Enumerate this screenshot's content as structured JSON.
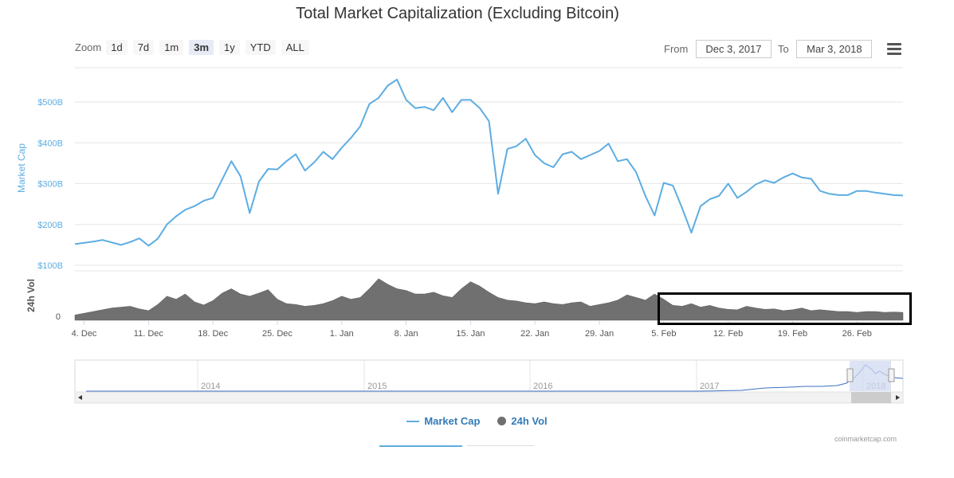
{
  "title": "Total Market Capitalization (Excluding Bitcoin)",
  "zoom": {
    "label": "Zoom",
    "buttons": [
      "1d",
      "7d",
      "1m",
      "3m",
      "1y",
      "YTD",
      "ALL"
    ],
    "active": "3m"
  },
  "range": {
    "from_label": "From",
    "from_value": "Dec 3, 2017",
    "to_label": "To",
    "to_value": "Mar 3, 2018"
  },
  "menu_icon": "hamburger-menu-icon",
  "colors": {
    "market_cap": "#5dade2",
    "volume": "#707070",
    "grid": "#e6e6e6",
    "navigator_fill": "#cfd9f0"
  },
  "chart_data": {
    "type": "line",
    "ylabel": "Market Cap",
    "ylabel2": "24h Vol",
    "y_ticks": [
      "$100B",
      "$200B",
      "$300B",
      "$400B",
      "$500B"
    ],
    "y_tick_values": [
      100,
      200,
      300,
      400,
      500
    ],
    "ylim": [
      100,
      560
    ],
    "vol_tick": "0",
    "x_ticks": [
      "4. Dec",
      "11. Dec",
      "18. Dec",
      "25. Dec",
      "1. Jan",
      "8. Jan",
      "15. Jan",
      "22. Jan",
      "29. Jan",
      "5. Feb",
      "12. Feb",
      "19. Feb",
      "26. Feb"
    ],
    "xlim_days": [
      0,
      90
    ],
    "x_tick_days": [
      1,
      8,
      15,
      22,
      29,
      36,
      43,
      50,
      57,
      64,
      71,
      78,
      85
    ],
    "series": [
      {
        "name": "Market Cap",
        "unit": "B USD",
        "x_days": [
          0,
          2,
          3,
          5,
          6,
          7,
          8,
          9,
          10,
          11,
          12,
          13,
          14,
          15,
          16,
          17,
          18,
          19,
          20,
          21,
          22,
          23,
          24,
          25,
          26,
          27,
          28,
          29,
          30,
          31,
          32,
          33,
          34,
          35,
          36,
          37,
          38,
          39,
          40,
          41,
          42,
          43,
          44,
          45,
          46,
          47,
          48,
          49,
          50,
          51,
          52,
          53,
          54,
          55,
          56,
          57,
          58,
          59,
          60,
          61,
          62,
          63,
          64,
          65,
          66,
          67,
          68,
          69,
          70,
          71,
          72,
          73,
          74,
          75,
          76,
          77,
          78,
          79,
          80,
          81,
          82,
          83,
          84,
          85,
          86,
          87,
          88,
          89,
          90
        ],
        "values": [
          152,
          158,
          162,
          150,
          157,
          166,
          148,
          165,
          200,
          220,
          236,
          245,
          258,
          265,
          310,
          355,
          318,
          228,
          305,
          336,
          335,
          355,
          372,
          332,
          352,
          378,
          360,
          388,
          412,
          440,
          495,
          510,
          540,
          555,
          505,
          485,
          488,
          480,
          510,
          475,
          505,
          505,
          485,
          453,
          275,
          385,
          392,
          410,
          370,
          350,
          340,
          372,
          378,
          360,
          370,
          380,
          398,
          355,
          360,
          328,
          270,
          222,
          302,
          295,
          240,
          180,
          245,
          262,
          270,
          300,
          265,
          280,
          298,
          308,
          302,
          315,
          325,
          315,
          312,
          282,
          275,
          272,
          272,
          282,
          282,
          278,
          275,
          272,
          271
        ]
      },
      {
        "name": "24h Vol",
        "unit": "relative",
        "x_days": [
          0,
          2,
          4,
          6,
          7,
          8,
          9,
          10,
          11,
          12,
          13,
          14,
          15,
          16,
          17,
          18,
          19,
          20,
          21,
          22,
          23,
          24,
          25,
          26,
          27,
          28,
          29,
          30,
          31,
          32,
          33,
          34,
          35,
          36,
          37,
          38,
          39,
          40,
          41,
          42,
          43,
          44,
          45,
          46,
          47,
          48,
          49,
          50,
          51,
          52,
          53,
          54,
          55,
          56,
          57,
          58,
          59,
          60,
          61,
          62,
          63,
          64,
          65,
          66,
          67,
          68,
          69,
          70,
          71,
          72,
          73,
          74,
          75,
          76,
          77,
          78,
          79,
          80,
          81,
          82,
          83,
          84,
          85,
          86,
          87,
          88,
          89,
          90
        ],
        "values": [
          0.12,
          0.2,
          0.28,
          0.32,
          0.26,
          0.22,
          0.36,
          0.55,
          0.48,
          0.6,
          0.42,
          0.35,
          0.45,
          0.62,
          0.72,
          0.6,
          0.55,
          0.62,
          0.7,
          0.48,
          0.38,
          0.36,
          0.32,
          0.34,
          0.38,
          0.45,
          0.55,
          0.48,
          0.52,
          0.72,
          0.95,
          0.82,
          0.72,
          0.68,
          0.6,
          0.6,
          0.64,
          0.56,
          0.52,
          0.72,
          0.88,
          0.78,
          0.64,
          0.52,
          0.46,
          0.44,
          0.4,
          0.38,
          0.42,
          0.38,
          0.36,
          0.4,
          0.42,
          0.32,
          0.36,
          0.4,
          0.46,
          0.58,
          0.52,
          0.46,
          0.6,
          0.48,
          0.34,
          0.32,
          0.38,
          0.3,
          0.34,
          0.28,
          0.25,
          0.24,
          0.32,
          0.28,
          0.25,
          0.26,
          0.22,
          0.24,
          0.28,
          0.22,
          0.24,
          0.22,
          0.2,
          0.2,
          0.18,
          0.2,
          0.2,
          0.18,
          0.19,
          0.18
        ]
      }
    ]
  },
  "navigator": {
    "years": [
      "2014",
      "2015",
      "2016",
      "2017",
      "2018"
    ]
  },
  "legend": {
    "market_cap": "Market Cap",
    "volume": "24h Vol"
  },
  "credit": "coinmarketcap.com"
}
